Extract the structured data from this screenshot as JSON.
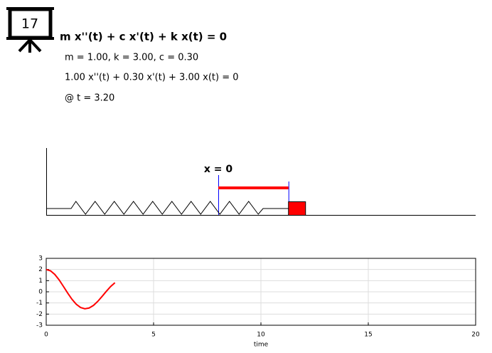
{
  "badge": "17",
  "equation": "m x''(t) + c x'(t) + k x(t) = 0",
  "parameters": "m = 1.00, k = 3.00, c = 0.30",
  "instance": "1.00 x''(t) + 0.30 x'(t) + 3.00 x(t) = 0",
  "time_label": "@ t = 3.20",
  "equilibrium_label": "x = 0",
  "chart_data": {
    "type": "line",
    "xlabel": "time",
    "x": [
      0,
      0.2,
      0.4,
      0.6,
      0.8,
      1.0,
      1.2,
      1.4,
      1.6,
      1.8,
      2.0,
      2.2,
      2.4,
      2.6,
      2.8,
      3.0,
      3.2
    ],
    "series": [
      {
        "color": "#ff0000",
        "values": [
          2,
          1.883,
          1.557,
          1.069,
          0.487,
          -0.118,
          -0.673,
          -1.12,
          -1.411,
          -1.52,
          -1.452,
          -1.223,
          -0.86,
          -0.418,
          0.043,
          0.472,
          0.816
        ]
      }
    ],
    "xlim": [
      0,
      20
    ],
    "xticks": [
      0,
      5,
      10,
      15,
      20
    ],
    "ylim": [
      -3,
      3
    ],
    "yticks": [
      -3,
      -2,
      -1,
      0,
      1,
      2,
      3
    ],
    "grid": true
  }
}
